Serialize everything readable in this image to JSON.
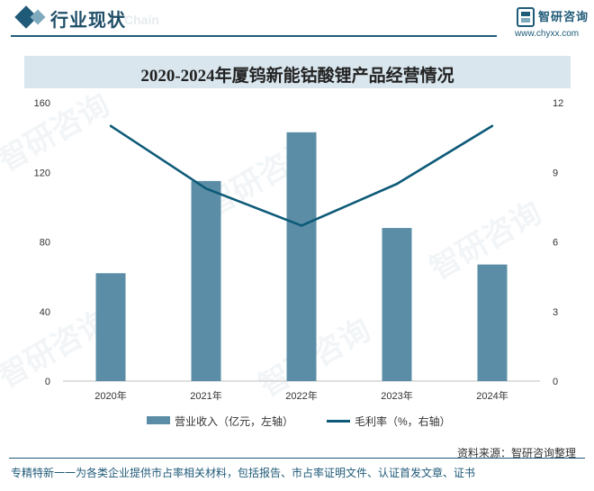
{
  "header": {
    "title": "行业现状",
    "subtitle": "Chain",
    "logo_name": "智研咨询",
    "logo_url": "www.chyxx.com"
  },
  "chart_data": {
    "type": "bar",
    "title": "2020-2024年厦钨新能钴酸锂产品经营情况",
    "categories": [
      "2020年",
      "2021年",
      "2022年",
      "2023年",
      "2024年"
    ],
    "series": [
      {
        "name": "营业收入（亿元，左轴）",
        "type": "bar",
        "axis": "left",
        "values": [
          62,
          115,
          143,
          88,
          67
        ],
        "color": "#5b8ea6"
      },
      {
        "name": "毛利率（%，右轴）",
        "type": "line",
        "axis": "right",
        "values": [
          11,
          8.3,
          6.7,
          8.5,
          11
        ],
        "color": "#0d5a78"
      }
    ],
    "y_left": {
      "ticks": [
        0,
        40,
        80,
        120,
        160
      ],
      "ylim": [
        0,
        160
      ]
    },
    "y_right": {
      "ticks": [
        0,
        3,
        6,
        9,
        12
      ],
      "ylim": [
        0,
        12
      ]
    },
    "grid": false,
    "legend_position": "bottom"
  },
  "footer": {
    "source": "资料来源：智研咨询整理",
    "slogan": "专精特新一一为各类企业提供市占率相关材料，包括报告、市占率证明文件、认证首发文章、证书"
  },
  "colors": {
    "brand": "#1f5a78",
    "bar": "#5b8ea6",
    "line": "#0d5a78",
    "title_bg": "#d9e6ee"
  }
}
